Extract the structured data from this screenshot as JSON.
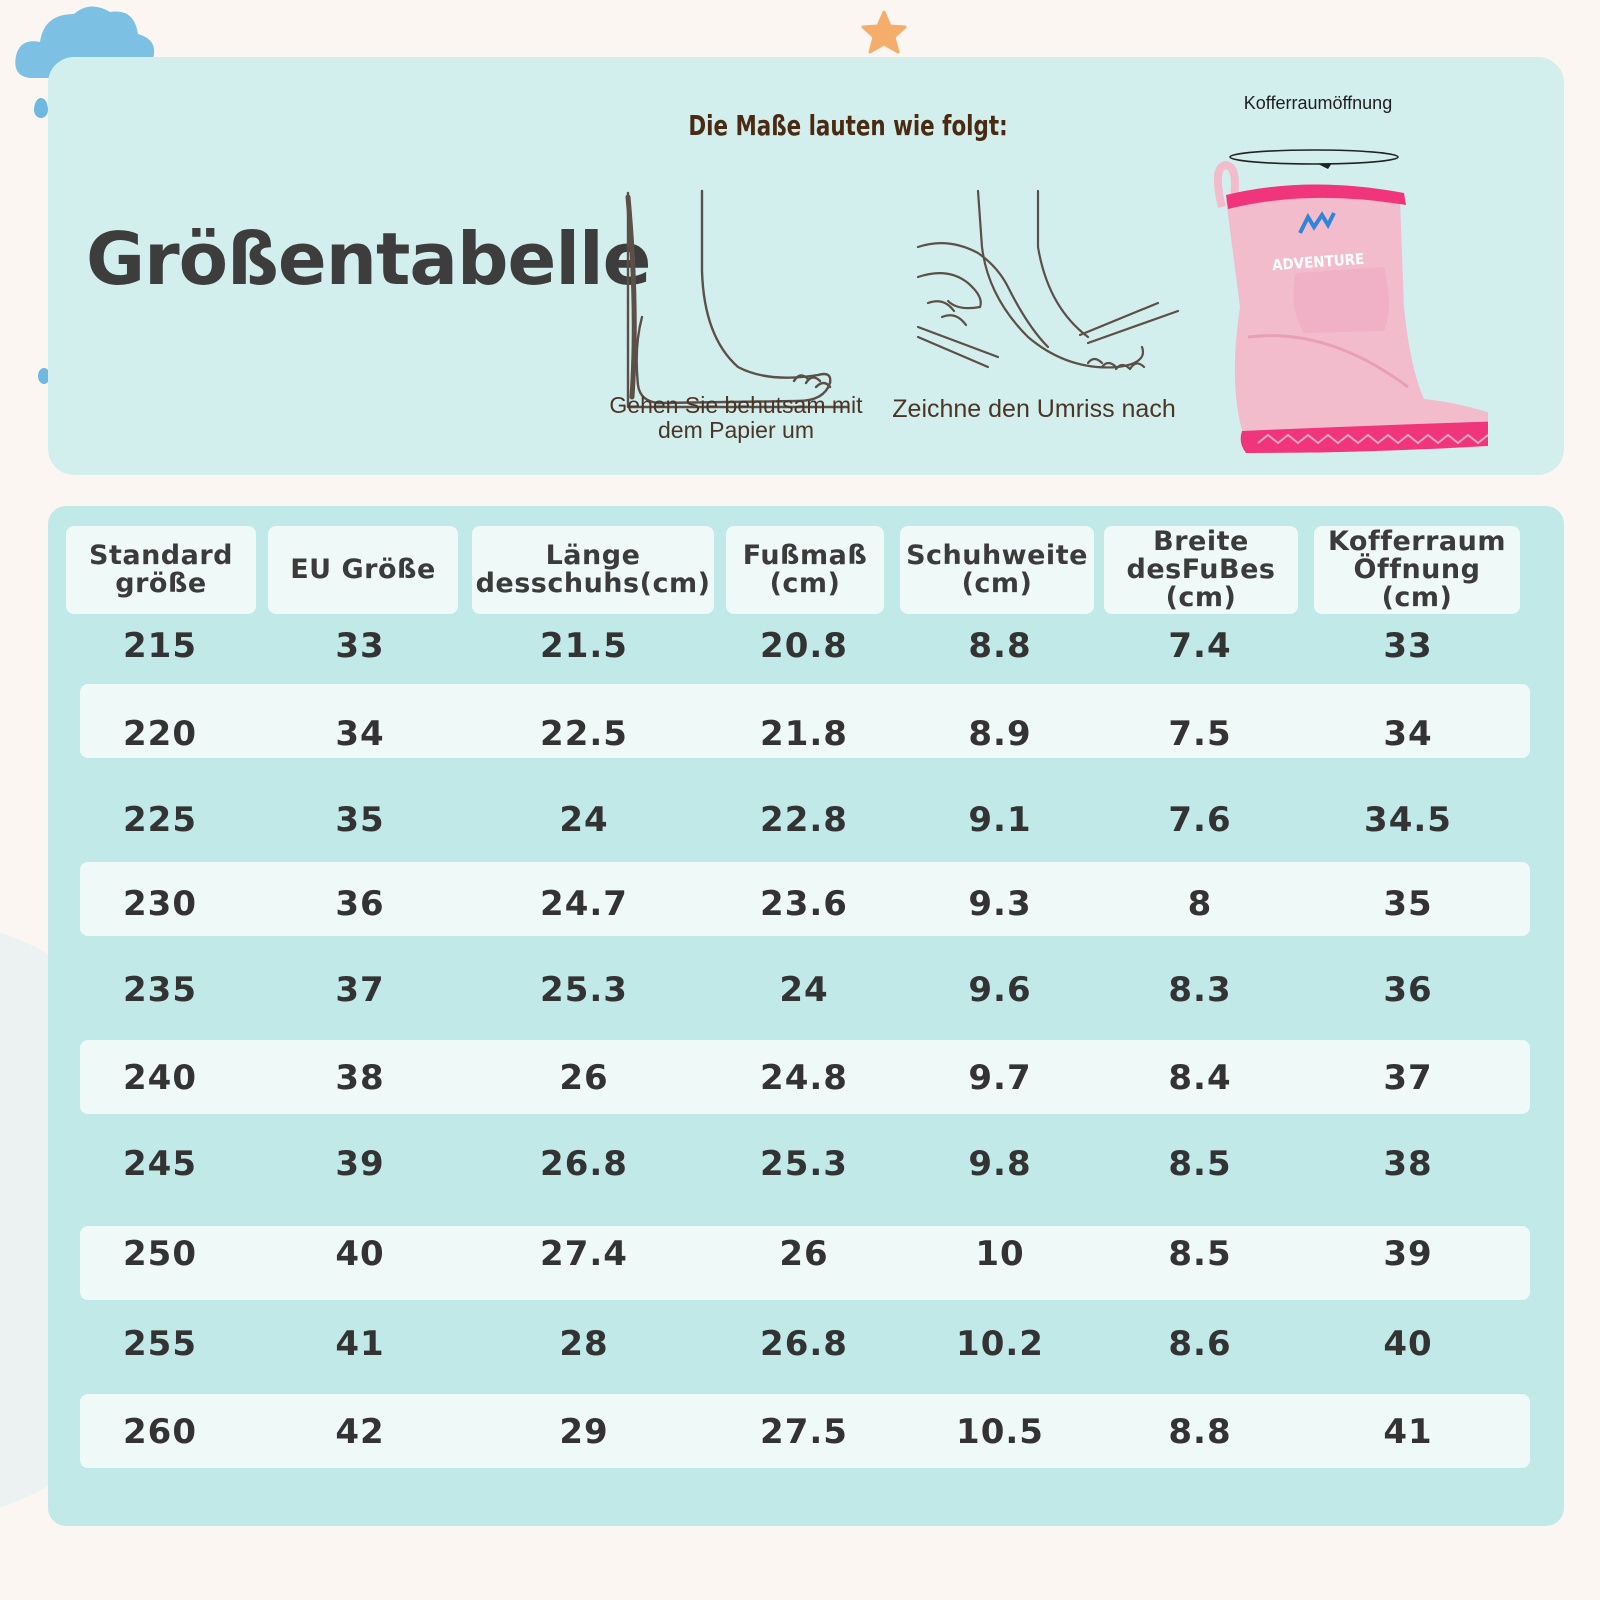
{
  "top_panel": {
    "title": "Größentabelle",
    "subtitle": "Die Maße lauten wie folgt:",
    "caption_step1": "Gehen Sie behutsam mit dem Papier um",
    "caption_step2": "Zeichne den Umriss nach",
    "boot_label": "Kofferraumöffnung",
    "boot_brand": "ADVENTURE"
  },
  "table": {
    "headers": [
      "Standard\ngröße",
      "EU Größe",
      "Länge\ndesschuhs(cm)",
      "Fußmaß\n(cm)",
      "Schuhweite\n(cm)",
      "Breite\ndesFuBes\n(cm)",
      "Kofferraum\nÖffnung\n(cm)"
    ],
    "rows": [
      [
        "215",
        "33",
        "21.5",
        "20.8",
        "8.8",
        "7.4",
        "33"
      ],
      [
        "220",
        "34",
        "22.5",
        "21.8",
        "8.9",
        "7.5",
        "34"
      ],
      [
        "225",
        "35",
        "24",
        "22.8",
        "9.1",
        "7.6",
        "34.5"
      ],
      [
        "230",
        "36",
        "24.7",
        "23.6",
        "9.3",
        "8",
        "35"
      ],
      [
        "235",
        "37",
        "25.3",
        "24",
        "9.6",
        "8.3",
        "36"
      ],
      [
        "240",
        "38",
        "26",
        "24.8",
        "9.7",
        "8.4",
        "37"
      ],
      [
        "245",
        "39",
        "26.8",
        "25.3",
        "9.8",
        "8.5",
        "38"
      ],
      [
        "250",
        "40",
        "27.4",
        "26",
        "10",
        "8.5",
        "39"
      ],
      [
        "255",
        "41",
        "28",
        "26.8",
        "10.2",
        "8.6",
        "40"
      ],
      [
        "260",
        "42",
        "29",
        "27.5",
        "10.5",
        "8.8",
        "41"
      ]
    ]
  },
  "colors": {
    "panel_bg": "#d2efee",
    "table_bg": "#c1e9e8",
    "stripe": "#eff9f8",
    "boot_pink": "#f3bccd",
    "boot_accent": "#f0357a",
    "logo_blue": "#2f86d8"
  }
}
